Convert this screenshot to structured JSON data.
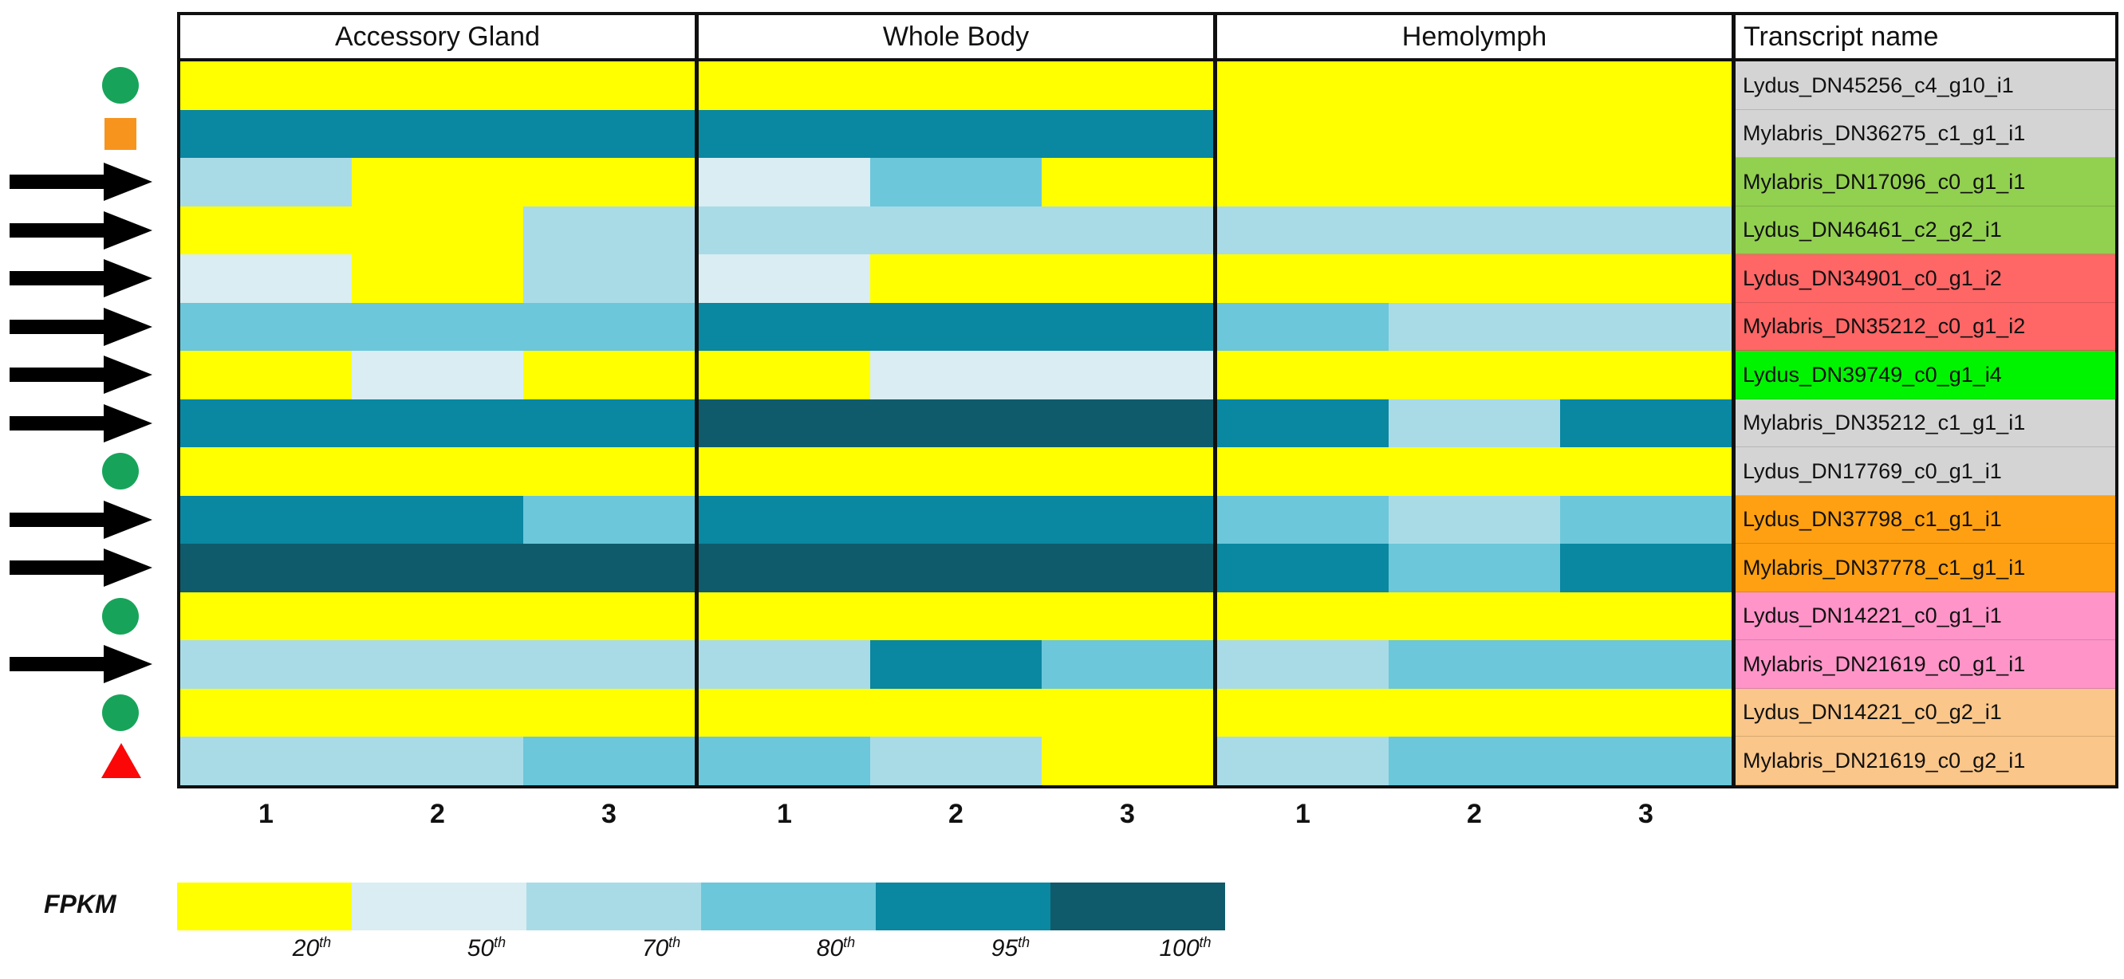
{
  "chart_data": {
    "type": "heatmap",
    "title": "",
    "transcript_header": "Transcript name",
    "column_groups": [
      {
        "label": "Accessory Gland",
        "replicates": [
          "1",
          "2",
          "3"
        ]
      },
      {
        "label": "Whole Body",
        "replicates": [
          "1",
          "2",
          "3"
        ]
      },
      {
        "label": "Hemolymph",
        "replicates": [
          "1",
          "2",
          "3"
        ]
      }
    ],
    "value_unit": "FPKM percentile bin",
    "palette": {
      "20": "#FFFF00",
      "50": "#D9EDF3",
      "70": "#A9DBE7",
      "80": "#6CC7DA",
      "95": "#0A87A1",
      "100": "#0F5B6B"
    },
    "marker_colors": {
      "green-circle": "#17A45A",
      "orange-square": "#F7941E",
      "arrow": "#000000",
      "red-triangle": "#FB0707"
    },
    "row_label_colors": {
      "gray": "#D4D4D4",
      "green": "#92D050",
      "salmon": "#FF6666",
      "brightgreen": "#00F400",
      "orange": "#FFA012",
      "pink": "#FF94C8",
      "peach": "#FAC689"
    },
    "rows": [
      {
        "transcript": "Lydus_DN45256_c4_g10_i1",
        "label_color": "gray",
        "marker": "green-circle",
        "percentile_bins": [
          20,
          20,
          20,
          20,
          20,
          20,
          20,
          20,
          20
        ]
      },
      {
        "transcript": "Mylabris_DN36275_c1_g1_i1",
        "label_color": "gray",
        "marker": "orange-square",
        "percentile_bins": [
          95,
          95,
          95,
          95,
          95,
          95,
          20,
          20,
          20
        ]
      },
      {
        "transcript": "Mylabris_DN17096_c0_g1_i1",
        "label_color": "green",
        "marker": "arrow",
        "percentile_bins": [
          70,
          20,
          20,
          50,
          80,
          20,
          20,
          20,
          20
        ]
      },
      {
        "transcript": "Lydus_DN46461_c2_g2_i1",
        "label_color": "green",
        "marker": "arrow",
        "percentile_bins": [
          20,
          20,
          70,
          70,
          70,
          70,
          70,
          70,
          70
        ]
      },
      {
        "transcript": "Lydus_DN34901_c0_g1_i2",
        "label_color": "salmon",
        "marker": "arrow",
        "percentile_bins": [
          50,
          20,
          70,
          50,
          20,
          20,
          20,
          20,
          20
        ]
      },
      {
        "transcript": "Mylabris_DN35212_c0_g1_i2",
        "label_color": "salmon",
        "marker": "arrow",
        "percentile_bins": [
          80,
          80,
          80,
          95,
          95,
          95,
          80,
          70,
          70
        ]
      },
      {
        "transcript": "Lydus_DN39749_c0_g1_i4",
        "label_color": "brightgreen",
        "marker": "arrow",
        "percentile_bins": [
          20,
          50,
          20,
          20,
          50,
          50,
          20,
          20,
          20
        ]
      },
      {
        "transcript": "Mylabris_DN35212_c1_g1_i1",
        "label_color": "gray",
        "marker": "arrow",
        "percentile_bins": [
          95,
          95,
          95,
          100,
          100,
          100,
          95,
          70,
          95
        ]
      },
      {
        "transcript": "Lydus_DN17769_c0_g1_i1",
        "label_color": "gray",
        "marker": "green-circle",
        "percentile_bins": [
          20,
          20,
          20,
          20,
          20,
          20,
          20,
          20,
          20
        ]
      },
      {
        "transcript": "Lydus_DN37798_c1_g1_i1",
        "label_color": "orange",
        "marker": "arrow",
        "percentile_bins": [
          95,
          95,
          80,
          95,
          95,
          95,
          80,
          70,
          80
        ]
      },
      {
        "transcript": "Mylabris_DN37778_c1_g1_i1",
        "label_color": "orange",
        "marker": "arrow",
        "percentile_bins": [
          100,
          100,
          100,
          100,
          100,
          100,
          95,
          80,
          95
        ]
      },
      {
        "transcript": "Lydus_DN14221_c0_g1_i1",
        "label_color": "pink",
        "marker": "green-circle",
        "percentile_bins": [
          20,
          20,
          20,
          20,
          20,
          20,
          20,
          20,
          20
        ]
      },
      {
        "transcript": "Mylabris_DN21619_c0_g1_i1",
        "label_color": "pink",
        "marker": "arrow",
        "percentile_bins": [
          70,
          70,
          70,
          70,
          95,
          80,
          70,
          80,
          80
        ]
      },
      {
        "transcript": "Lydus_DN14221_c0_g2_i1",
        "label_color": "peach",
        "marker": "green-circle",
        "percentile_bins": [
          20,
          20,
          20,
          20,
          20,
          20,
          20,
          20,
          20
        ]
      },
      {
        "transcript": "Mylabris_DN21619_c0_g2_i1",
        "label_color": "peach",
        "marker": "red-triangle",
        "percentile_bins": [
          70,
          70,
          80,
          80,
          70,
          20,
          70,
          80,
          80
        ]
      }
    ],
    "legend": {
      "title": "FPKM",
      "position": "bottom-left",
      "entries": [
        {
          "value": "20",
          "suffix": "th",
          "color": "#FFFF00"
        },
        {
          "value": "50",
          "suffix": "th",
          "color": "#D9EDF3"
        },
        {
          "value": "70",
          "suffix": "th",
          "color": "#A9DBE7"
        },
        {
          "value": "80",
          "suffix": "th",
          "color": "#6CC7DA"
        },
        {
          "value": "95",
          "suffix": "th",
          "color": "#0A87A1"
        },
        {
          "value": "100",
          "suffix": "th",
          "color": "#0F5B6B"
        }
      ]
    }
  }
}
